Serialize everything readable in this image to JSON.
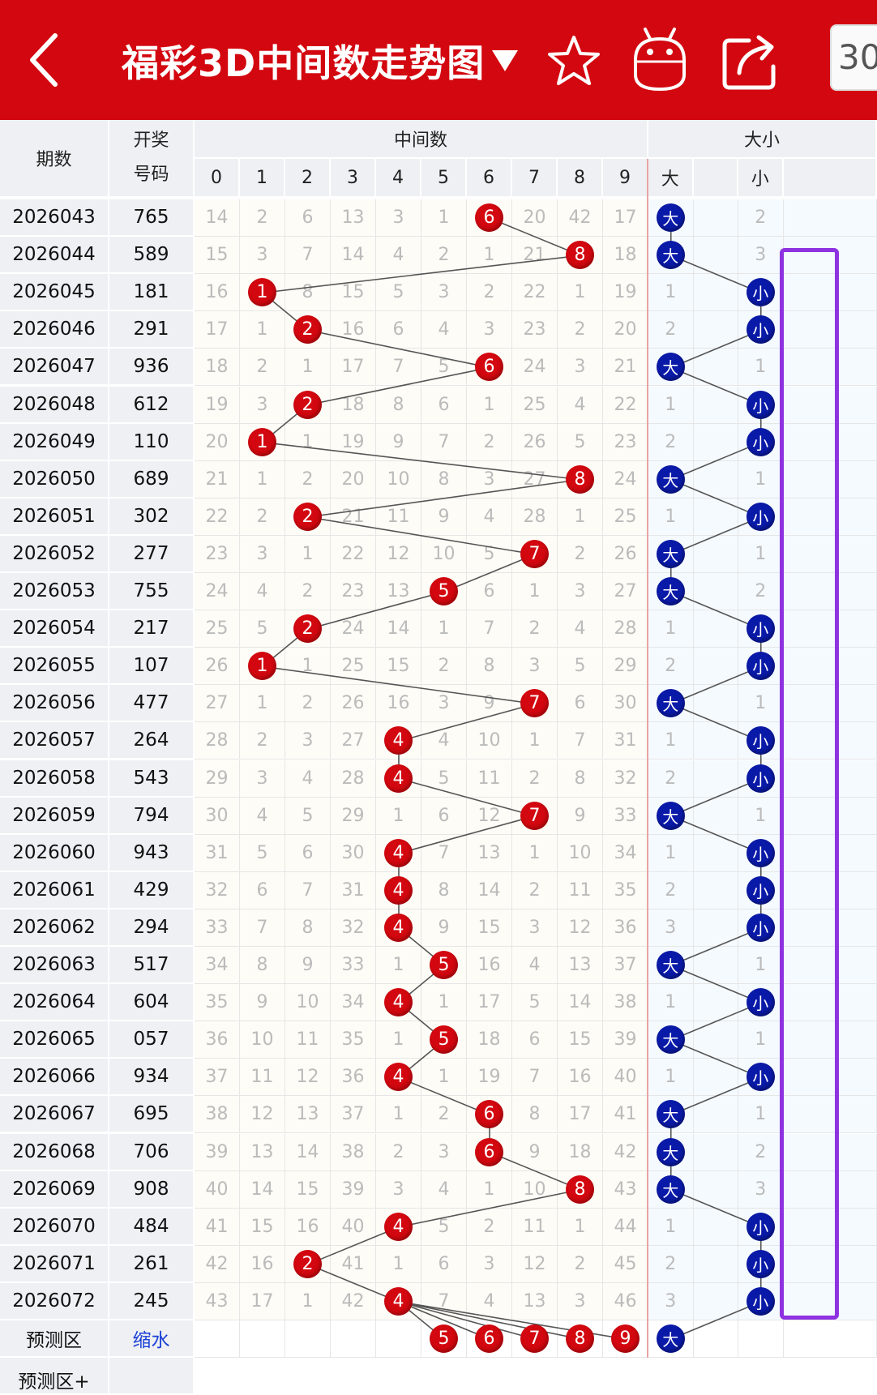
{
  "header": {
    "back_icon": "chevron-left-icon",
    "title": "福彩3D中间数走势图",
    "dropdown_icon": "caret-down-icon",
    "favorite_icon": "star-icon",
    "robot_icon": "robot-icon",
    "share_icon": "share-icon",
    "periods_label": "30"
  },
  "table": {
    "col_issue": "期数",
    "col_draw": "开奖\n号码",
    "group_mid": "中间数",
    "group_bigsmall": "大小",
    "digits": [
      "0",
      "1",
      "2",
      "3",
      "4",
      "5",
      "6",
      "7",
      "8",
      "9"
    ],
    "big_label": "大",
    "small_label": "小",
    "rows": [
      {
        "issue": "2026043",
        "draw": "765",
        "mid": 6,
        "miss": [
          14,
          2,
          6,
          13,
          3,
          1,
          null,
          20,
          42,
          17
        ],
        "big": true,
        "bs_miss": [
          null,
          null,
          2
        ]
      },
      {
        "issue": "2026044",
        "draw": "589",
        "mid": 8,
        "miss": [
          15,
          3,
          7,
          14,
          4,
          2,
          1,
          21,
          null,
          18
        ],
        "big": true,
        "bs_miss": [
          null,
          null,
          3
        ]
      },
      {
        "issue": "2026045",
        "draw": "181",
        "mid": 1,
        "miss": [
          16,
          null,
          8,
          15,
          5,
          3,
          2,
          22,
          1,
          19
        ],
        "big": false,
        "bs_miss": [
          1,
          null,
          null
        ]
      },
      {
        "issue": "2026046",
        "draw": "291",
        "mid": 2,
        "miss": [
          17,
          1,
          null,
          16,
          6,
          4,
          3,
          23,
          2,
          20
        ],
        "big": false,
        "bs_miss": [
          2,
          null,
          null
        ]
      },
      {
        "issue": "2026047",
        "draw": "936",
        "mid": 6,
        "miss": [
          18,
          2,
          1,
          17,
          7,
          5,
          null,
          24,
          3,
          21
        ],
        "big": true,
        "bs_miss": [
          null,
          null,
          1
        ]
      },
      {
        "issue": "2026048",
        "draw": "612",
        "mid": 2,
        "miss": [
          19,
          3,
          null,
          18,
          8,
          6,
          1,
          25,
          4,
          22
        ],
        "big": false,
        "bs_miss": [
          1,
          null,
          null
        ]
      },
      {
        "issue": "2026049",
        "draw": "110",
        "mid": 1,
        "miss": [
          20,
          null,
          1,
          19,
          9,
          7,
          2,
          26,
          5,
          23
        ],
        "big": false,
        "bs_miss": [
          2,
          null,
          null
        ]
      },
      {
        "issue": "2026050",
        "draw": "689",
        "mid": 8,
        "miss": [
          21,
          1,
          2,
          20,
          10,
          8,
          3,
          27,
          null,
          24
        ],
        "big": true,
        "bs_miss": [
          null,
          null,
          1
        ]
      },
      {
        "issue": "2026051",
        "draw": "302",
        "mid": 2,
        "miss": [
          22,
          2,
          null,
          21,
          11,
          9,
          4,
          28,
          1,
          25
        ],
        "big": false,
        "bs_miss": [
          1,
          null,
          null
        ]
      },
      {
        "issue": "2026052",
        "draw": "277",
        "mid": 7,
        "miss": [
          23,
          3,
          1,
          22,
          12,
          10,
          5,
          null,
          2,
          26
        ],
        "big": true,
        "bs_miss": [
          null,
          null,
          1
        ]
      },
      {
        "issue": "2026053",
        "draw": "755",
        "mid": 5,
        "miss": [
          24,
          4,
          2,
          23,
          13,
          null,
          6,
          1,
          3,
          27
        ],
        "big": true,
        "bs_miss": [
          null,
          null,
          2
        ]
      },
      {
        "issue": "2026054",
        "draw": "217",
        "mid": 2,
        "miss": [
          25,
          5,
          null,
          24,
          14,
          1,
          7,
          2,
          4,
          28
        ],
        "big": false,
        "bs_miss": [
          1,
          null,
          null
        ]
      },
      {
        "issue": "2026055",
        "draw": "107",
        "mid": 1,
        "miss": [
          26,
          null,
          1,
          25,
          15,
          2,
          8,
          3,
          5,
          29
        ],
        "big": false,
        "bs_miss": [
          2,
          null,
          null
        ]
      },
      {
        "issue": "2026056",
        "draw": "477",
        "mid": 7,
        "miss": [
          27,
          1,
          2,
          26,
          16,
          3,
          9,
          null,
          6,
          30
        ],
        "big": true,
        "bs_miss": [
          null,
          null,
          1
        ]
      },
      {
        "issue": "2026057",
        "draw": "264",
        "mid": 4,
        "miss": [
          28,
          2,
          3,
          27,
          null,
          4,
          10,
          1,
          7,
          31
        ],
        "big": false,
        "bs_miss": [
          1,
          null,
          null
        ]
      },
      {
        "issue": "2026058",
        "draw": "543",
        "mid": 4,
        "miss": [
          29,
          3,
          4,
          28,
          null,
          5,
          11,
          2,
          8,
          32
        ],
        "big": false,
        "bs_miss": [
          2,
          null,
          null
        ]
      },
      {
        "issue": "2026059",
        "draw": "794",
        "mid": 7,
        "miss": [
          30,
          4,
          5,
          29,
          1,
          6,
          12,
          null,
          9,
          33
        ],
        "big": true,
        "bs_miss": [
          null,
          null,
          1
        ]
      },
      {
        "issue": "2026060",
        "draw": "943",
        "mid": 4,
        "miss": [
          31,
          5,
          6,
          30,
          null,
          7,
          13,
          1,
          10,
          34
        ],
        "big": false,
        "bs_miss": [
          1,
          null,
          null
        ]
      },
      {
        "issue": "2026061",
        "draw": "429",
        "mid": 4,
        "miss": [
          32,
          6,
          7,
          31,
          null,
          8,
          14,
          2,
          11,
          35
        ],
        "big": false,
        "bs_miss": [
          2,
          null,
          null
        ]
      },
      {
        "issue": "2026062",
        "draw": "294",
        "mid": 4,
        "miss": [
          33,
          7,
          8,
          32,
          null,
          9,
          15,
          3,
          12,
          36
        ],
        "big": false,
        "bs_miss": [
          3,
          null,
          null
        ]
      },
      {
        "issue": "2026063",
        "draw": "517",
        "mid": 5,
        "miss": [
          34,
          8,
          9,
          33,
          1,
          null,
          16,
          4,
          13,
          37
        ],
        "big": true,
        "bs_miss": [
          null,
          null,
          1
        ]
      },
      {
        "issue": "2026064",
        "draw": "604",
        "mid": 4,
        "miss": [
          35,
          9,
          10,
          34,
          null,
          1,
          17,
          5,
          14,
          38
        ],
        "big": false,
        "bs_miss": [
          1,
          null,
          null
        ]
      },
      {
        "issue": "2026065",
        "draw": "057",
        "mid": 5,
        "miss": [
          36,
          10,
          11,
          35,
          1,
          null,
          18,
          6,
          15,
          39
        ],
        "big": true,
        "bs_miss": [
          null,
          null,
          1
        ]
      },
      {
        "issue": "2026066",
        "draw": "934",
        "mid": 4,
        "miss": [
          37,
          11,
          12,
          36,
          null,
          1,
          19,
          7,
          16,
          40
        ],
        "big": false,
        "bs_miss": [
          1,
          null,
          null
        ]
      },
      {
        "issue": "2026067",
        "draw": "695",
        "mid": 6,
        "miss": [
          38,
          12,
          13,
          37,
          1,
          2,
          null,
          8,
          17,
          41
        ],
        "big": true,
        "bs_miss": [
          null,
          null,
          1
        ]
      },
      {
        "issue": "2026068",
        "draw": "706",
        "mid": 6,
        "miss": [
          39,
          13,
          14,
          38,
          2,
          3,
          null,
          9,
          18,
          42
        ],
        "big": true,
        "bs_miss": [
          null,
          null,
          2
        ]
      },
      {
        "issue": "2026069",
        "draw": "908",
        "mid": 8,
        "miss": [
          40,
          14,
          15,
          39,
          3,
          4,
          1,
          10,
          null,
          43
        ],
        "big": true,
        "bs_miss": [
          null,
          null,
          3
        ]
      },
      {
        "issue": "2026070",
        "draw": "484",
        "mid": 4,
        "miss": [
          41,
          15,
          16,
          40,
          null,
          5,
          2,
          11,
          1,
          44
        ],
        "big": false,
        "bs_miss": [
          1,
          null,
          null
        ]
      },
      {
        "issue": "2026071",
        "draw": "261",
        "mid": 2,
        "miss": [
          42,
          16,
          null,
          41,
          1,
          6,
          3,
          12,
          2,
          45
        ],
        "big": false,
        "bs_miss": [
          2,
          null,
          null
        ]
      },
      {
        "issue": "2026072",
        "draw": "245",
        "mid": 4,
        "miss": [
          43,
          17,
          1,
          42,
          null,
          7,
          4,
          13,
          3,
          46
        ],
        "big": false,
        "bs_miss": [
          3,
          null,
          null
        ]
      }
    ],
    "predict": {
      "label": "预测区",
      "link": "缩水",
      "balls": [
        "5",
        "6",
        "7",
        "8",
        "9"
      ],
      "big_label": "大"
    },
    "predict_plus": {
      "label": "预测区+"
    }
  },
  "colors": {
    "header_red": "#d3070f",
    "red_ball": "#d3070f",
    "blue_ball": "#0a1aa8",
    "highlight_purple": "#8e33e0"
  }
}
